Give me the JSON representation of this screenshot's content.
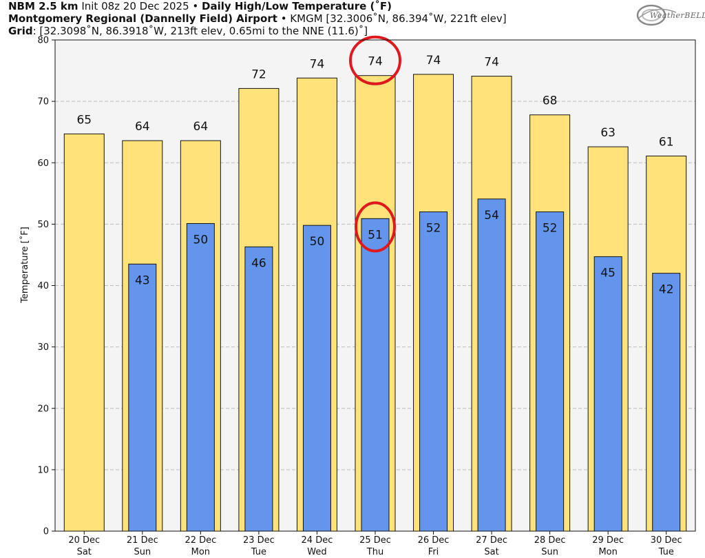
{
  "header": {
    "line1_bold1": "NBM 2.5 km",
    "line1_normal": " Init 08z 20 Dec 2025 • ",
    "line1_bold2": "Daily High/Low Temperature (˚F)",
    "line2_bold": "Montgomery Regional (Dannelly Field) Airport",
    "line2_normal": " • KMGM [32.3006˚N, 86.394˚W, 221ft elev]",
    "line3_bold": "Grid",
    "line3_normal": ": [32.3098˚N, 86.3918˚W, 213ft elev, 0.65mi to the NNE (11.6)˚]"
  },
  "logo": {
    "text": "WeatherBELL"
  },
  "chart_data": {
    "type": "bar",
    "xlabel": "",
    "ylabel": "Temperature [˚F]",
    "ylim": [
      0,
      80
    ],
    "yticks": [
      0,
      10,
      20,
      30,
      40,
      50,
      60,
      70,
      80
    ],
    "grid": true,
    "categories": [
      [
        "20 Dec",
        "Sat"
      ],
      [
        "21 Dec",
        "Sun"
      ],
      [
        "22 Dec",
        "Mon"
      ],
      [
        "23 Dec",
        "Tue"
      ],
      [
        "24 Dec",
        "Wed"
      ],
      [
        "25 Dec",
        "Thu"
      ],
      [
        "26 Dec",
        "Fri"
      ],
      [
        "27 Dec",
        "Sat"
      ],
      [
        "28 Dec",
        "Sun"
      ],
      [
        "29 Dec",
        "Mon"
      ],
      [
        "30 Dec",
        "Tue"
      ]
    ],
    "series": [
      {
        "values": [
          64.7,
          63.6,
          63.6,
          72.1,
          73.8,
          74.2,
          74.4,
          74.1,
          67.8,
          62.6,
          61.1
        ],
        "labels": [
          "65",
          "64",
          "64",
          "72",
          "74",
          "74",
          "74",
          "74",
          "68",
          "63",
          "61"
        ],
        "color": "#FFE27A"
      },
      {
        "values": [
          null,
          43.5,
          50.1,
          46.3,
          49.8,
          50.9,
          52.0,
          54.1,
          52.0,
          44.7,
          42.0
        ],
        "labels": [
          "",
          "43",
          "50",
          "46",
          "50",
          "51",
          "52",
          "54",
          "52",
          "45",
          "42"
        ],
        "color": "#6495ED"
      }
    ],
    "annotations": [
      {
        "shape": "circle",
        "color": "#E0191F",
        "category_index": 5,
        "series_index": 0
      },
      {
        "shape": "circle",
        "color": "#E0191F",
        "category_index": 5,
        "series_index": 1
      }
    ]
  }
}
